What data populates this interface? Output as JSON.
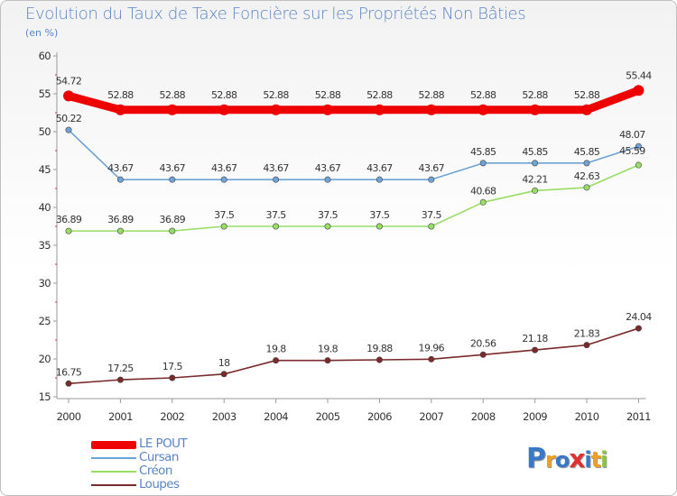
{
  "header": {
    "title": "Evolution du Taux de Taxe Foncière sur les Propriétés Non Bâties",
    "unit": "(en %)"
  },
  "chart_data": {
    "type": "line",
    "title": "Evolution du Taux de Taxe Foncière sur les Propriétés Non Bâties",
    "ylabel": "(en %)",
    "xlabel": "",
    "x": [
      "2000",
      "2001",
      "2002",
      "2003",
      "2004",
      "2005",
      "2006",
      "2007",
      "2008",
      "2009",
      "2010",
      "2011"
    ],
    "ylim": [
      15,
      60
    ],
    "yticks": [
      15,
      20,
      25,
      30,
      35,
      40,
      45,
      50,
      55,
      60
    ],
    "grid": false,
    "legend_position": "bottom-left",
    "series": [
      {
        "name": "LE POUT",
        "color": "#ee0000",
        "values": [
          54.72,
          52.88,
          52.88,
          52.88,
          52.88,
          52.88,
          52.88,
          52.88,
          52.88,
          52.88,
          52.88,
          55.44
        ],
        "labels": [
          "54.72",
          "52.88",
          "52.88",
          "52.88",
          "52.88",
          "52.88",
          "52.88",
          "52.88",
          "52.88",
          "52.88",
          "52.88",
          "55.44"
        ]
      },
      {
        "name": "Cursan",
        "color": "#6fa3d6",
        "values": [
          50.22,
          43.67,
          43.67,
          43.67,
          43.67,
          43.67,
          43.67,
          43.67,
          45.85,
          45.85,
          45.85,
          48.07
        ],
        "labels": [
          "50.22",
          "43.67",
          "43.67",
          "43.67",
          "43.67",
          "43.67",
          "43.67",
          "43.67",
          "45.85",
          "45.85",
          "45.85",
          "48.07"
        ]
      },
      {
        "name": "Créon",
        "color": "#99dd66",
        "values": [
          36.89,
          36.89,
          36.89,
          37.5,
          37.5,
          37.5,
          37.5,
          37.5,
          40.68,
          42.21,
          42.63,
          45.59
        ],
        "labels": [
          "36.89",
          "36.89",
          "36.89",
          "37.5",
          "37.5",
          "37.5",
          "37.5",
          "37.5",
          "40.68",
          "42.21",
          "42.63",
          "45.59"
        ]
      },
      {
        "name": "Loupes",
        "color": "#7a2a2a",
        "values": [
          16.75,
          17.25,
          17.5,
          18,
          19.8,
          19.8,
          19.88,
          19.96,
          20.56,
          21.18,
          21.83,
          24.04
        ],
        "labels": [
          "16.75",
          "17.25",
          "17.5",
          "18",
          "19.8",
          "19.8",
          "19.88",
          "19.96",
          "20.56",
          "21.18",
          "21.83",
          "24.04"
        ]
      }
    ]
  },
  "logo": {
    "text": "Proxiti",
    "letters": [
      "P",
      "r",
      "o",
      "x",
      "i",
      "t",
      "i"
    ],
    "colors": [
      "#3a78c8",
      "#f0a020",
      "#3a78c8",
      "#e03030",
      "#3a78c8",
      "#f0a020",
      "#8cc63f"
    ]
  }
}
